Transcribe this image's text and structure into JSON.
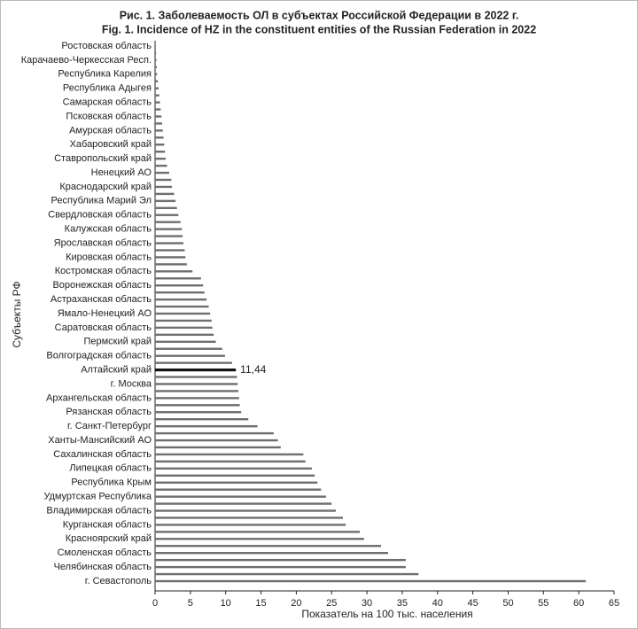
{
  "chart_data": {
    "type": "hbar",
    "title": "Рис. 1.  Заболеваемость ОЛ в субъектах Российской Федерации в 2022 г.",
    "subtitle": "Fig. 1. Incidence of HZ in the constituent entities of the Russian Federation in 2022",
    "x_label": "Показатель на 100 тыс. населения",
    "y_label": "Субъекты РФ",
    "categories": [
      "Ростовская область",
      null,
      "Карачаево-Черкесская Респ.",
      null,
      "Республика Карелия",
      null,
      "Республика Адыгея",
      null,
      "Самарская область",
      null,
      "Псковская область",
      null,
      "Амурская область",
      null,
      "Хабаровский край",
      null,
      "Ставропольский край",
      null,
      "Ненецкий АО",
      null,
      "Краснодарский край",
      null,
      "Республика Марий Эл",
      null,
      "Свердловская область",
      null,
      "Калужская область",
      null,
      "Ярославская область",
      null,
      "Кировская область",
      null,
      "Костромская область",
      null,
      "Воронежская область",
      null,
      "Астраханская область",
      null,
      "Ямало-Ненецкий АО",
      null,
      "Саратовская область",
      null,
      "Пермский край",
      null,
      "Волгоградская область",
      null,
      "Алтайский край",
      null,
      "г. Москва",
      null,
      "Архангельская область",
      null,
      "Рязанская область",
      null,
      "г. Санкт-Петербург",
      null,
      "Ханты-Мансийский АО",
      null,
      "Сахалинская область",
      null,
      "Липецкая область",
      null,
      "Республика Крым",
      null,
      "Удмуртская Республика",
      null,
      "Владимирская область",
      null,
      "Курганская область",
      null,
      "Красноярский край",
      null,
      "Смоленская область",
      null,
      "Челябинская область",
      null,
      "г. Севастополь"
    ],
    "values": [
      0.1,
      0.15,
      0.2,
      0.25,
      0.3,
      0.4,
      0.5,
      0.6,
      0.7,
      0.8,
      0.9,
      1.0,
      1.1,
      1.2,
      1.3,
      1.4,
      1.5,
      1.7,
      2.0,
      2.3,
      2.4,
      2.7,
      2.9,
      3.1,
      3.3,
      3.6,
      3.8,
      3.9,
      4.0,
      4.2,
      4.3,
      4.5,
      5.3,
      6.5,
      6.8,
      7.0,
      7.3,
      7.6,
      7.8,
      8.0,
      8.1,
      8.3,
      8.6,
      9.5,
      9.9,
      10.9,
      11.44,
      11.6,
      11.7,
      11.8,
      11.9,
      12.0,
      12.2,
      13.2,
      14.5,
      16.8,
      17.4,
      17.8,
      21.0,
      21.3,
      22.2,
      22.6,
      23.0,
      23.5,
      24.2,
      25.0,
      25.6,
      26.6,
      27.0,
      29.0,
      29.6,
      32.0,
      33.0,
      35.5,
      35.5,
      37.3,
      61.0
    ],
    "value_labels": [
      null,
      null,
      null,
      null,
      null,
      null,
      null,
      null,
      null,
      null,
      null,
      null,
      null,
      null,
      null,
      null,
      null,
      null,
      null,
      null,
      null,
      null,
      null,
      null,
      null,
      null,
      null,
      null,
      null,
      null,
      null,
      null,
      null,
      null,
      null,
      null,
      null,
      null,
      null,
      null,
      null,
      null,
      null,
      null,
      null,
      null,
      "11,44",
      null,
      null,
      null,
      null,
      null,
      null,
      null,
      null,
      null,
      null,
      null,
      null,
      null,
      null,
      null,
      null,
      null,
      null,
      null,
      null,
      null,
      null,
      null,
      null,
      null,
      null,
      null,
      null,
      null,
      null
    ],
    "color": "#6e6e6e",
    "highlight_color": "#111111",
    "xlim": [
      0,
      65
    ],
    "xticks": [
      0,
      5,
      10,
      15,
      20,
      25,
      30,
      35,
      40,
      45,
      50,
      55,
      60,
      65
    ]
  }
}
